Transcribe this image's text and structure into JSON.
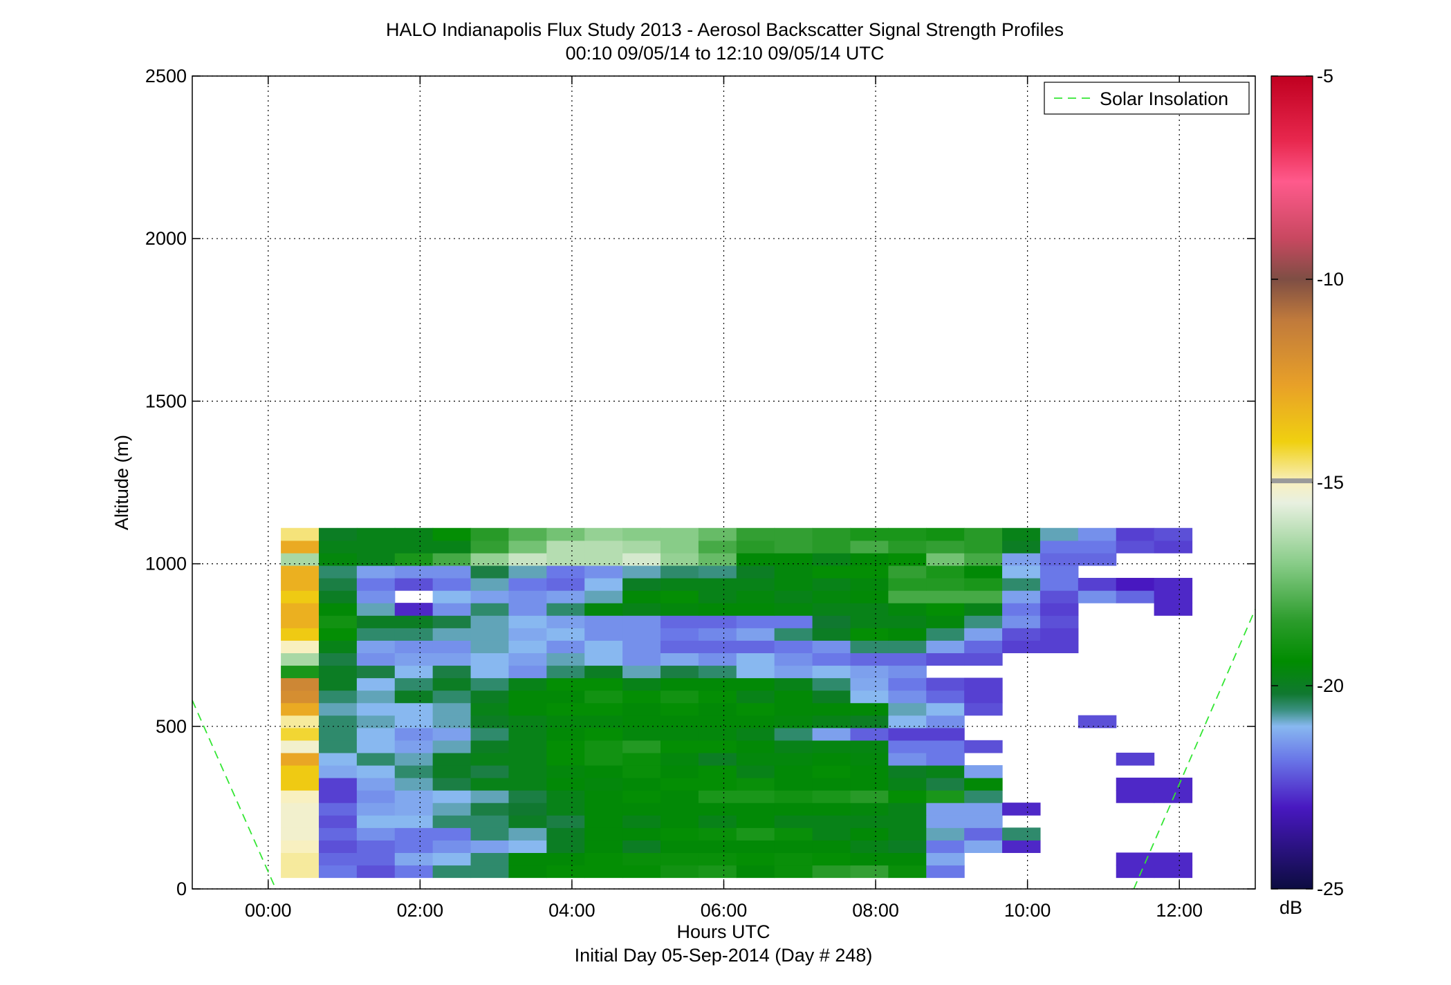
{
  "chart_data": {
    "type": "heatmap",
    "title": "HALO Indianapolis Flux Study 2013 - Aerosol Backscatter Signal Strength Profiles",
    "subtitle": "00:10 09/05/14 to 12:10 09/05/14  UTC",
    "xlabel": "Hours UTC",
    "xlabel2": "Initial Day 05-Sep-2014 (Day # 248)",
    "ylabel": "Altitude (m)",
    "xlim": [
      -1.0,
      13.0
    ],
    "ylim": [
      0,
      2500
    ],
    "x_ticks": [
      0,
      2,
      4,
      6,
      8,
      10,
      12
    ],
    "x_tick_labels": [
      "00:00",
      "02:00",
      "04:00",
      "06:00",
      "08:00",
      "10:00",
      "12:00"
    ],
    "y_ticks": [
      0,
      500,
      1000,
      1500,
      2000,
      2500
    ],
    "y_tick_labels": [
      "0",
      "500",
      "1000",
      "1500",
      "2000",
      "2500"
    ],
    "grid": true,
    "legend": {
      "placement": "top-right",
      "entries": [
        "Solar Insolation"
      ]
    },
    "colorbar": {
      "label": "dB",
      "range": [
        -25,
        -5
      ],
      "ticks": [
        -5,
        -10,
        -15,
        -20,
        -25
      ],
      "tick_labels": [
        "-5",
        "-10",
        "-15",
        "-20",
        "-25"
      ]
    },
    "cell": {
      "time_start": 0.1667,
      "time_step": 0.5,
      "alt_base": 35,
      "alt_step": 38.4
    },
    "profiles": [
      [
        -14.8,
        -21.8,
        -22.3,
        -21.8,
        -20.5,
        -20.5,
        -19.5,
        -19.3,
        -19.3,
        -19.3,
        -19.0,
        -18.8,
        -19.5,
        -19.2,
        -18.5,
        -18.3,
        -19.2,
        -21.8,
        null,
        null,
        null,
        null,
        -22.8,
        -22.8
      ],
      [
        -14.8,
        -22.0,
        -22.0,
        -21.2,
        -21.0,
        -20.5,
        -19.5,
        -19.5,
        -19.3,
        -19.2,
        -19.2,
        -19.2,
        -19.3,
        -19.2,
        -19.3,
        -19.5,
        -19.5,
        -21.2,
        null,
        null,
        null,
        null,
        -22.8,
        -22.8
      ],
      [
        -15.0,
        -22.3,
        -22.0,
        -21.8,
        -21.5,
        -21.3,
        -21.0,
        -20.0,
        -19.5,
        -20.0,
        -19.5,
        -19.5,
        -19.5,
        -19.5,
        -19.5,
        -19.8,
        -20.0,
        -21.8,
        -21.2,
        -22.8,
        null,
        null,
        null,
        null
      ],
      [
        -15.2,
        -22.0,
        -21.5,
        -21.8,
        -21.8,
        -20.5,
        -20.8,
        -20.0,
        -19.5,
        -19.5,
        -19.3,
        -19.2,
        -18.8,
        -19.2,
        -19.8,
        -19.5,
        -19.8,
        -20.8,
        -22.0,
        -20.5,
        null,
        null,
        null,
        null
      ],
      [
        -15.2,
        -22.3,
        -21.0,
        -21.0,
        -20.5,
        -20.5,
        -20.0,
        -20.3,
        -19.5,
        -19.8,
        -19.5,
        -19.8,
        -19.5,
        -19.8,
        -19.8,
        -19.8,
        -19.8,
        -21.3,
        -21.3,
        null,
        null,
        null,
        null,
        null
      ],
      [
        -15.2,
        -22.0,
        -21.3,
        -21.2,
        -20.8,
        -20.3,
        -20.2,
        -19.8,
        -19.5,
        -19.5,
        -19.5,
        -19.5,
        -19.5,
        -19.5,
        -19.5,
        -19.6,
        -19.8,
        -21.3,
        -21.3,
        -22.8,
        null,
        null,
        null,
        null
      ],
      [
        -15.0,
        -22.5,
        -21.5,
        -21.2,
        -21.0,
        -20.8,
        -20.3,
        -19.8,
        -19.5,
        -19.3,
        -19.5,
        -18.8,
        -18.8,
        -19.0,
        -18.8,
        -18.5,
        -19.3,
        -18.8,
        -20.5,
        null,
        null,
        null,
        -22.8,
        -22.8
      ],
      [
        -13.8,
        -22.5,
        -21.3,
        -20.8,
        -20.3,
        -19.8,
        -19.8,
        -19.5,
        -19.6,
        -19.5,
        -19.3,
        -19.3,
        -19.2,
        -19.5,
        -19.5,
        -19.5,
        -19.8,
        -20.3,
        -19.5,
        null,
        null,
        null,
        -22.8,
        -22.8
      ],
      [
        -13.8,
        -21.2,
        -21.0,
        -20.5,
        -20.0,
        -20.3,
        -19.8,
        -19.6,
        -19.5,
        -19.2,
        -19.5,
        -19.3,
        -19.8,
        -19.5,
        -19.3,
        -19.5,
        -20.0,
        -19.8,
        -21.3,
        null,
        null,
        null,
        null,
        null
      ],
      [
        -12.7,
        -21.0,
        -20.5,
        -20.8,
        -20.0,
        -19.8,
        -19.8,
        -19.3,
        -19.0,
        -19.2,
        -19.6,
        -20.0,
        -19.6,
        -19.6,
        -19.5,
        -19.6,
        -21.5,
        -21.8,
        null,
        null,
        null,
        null,
        -22.5,
        null
      ],
      [
        -15.2,
        -20.5,
        -21.0,
        -21.3,
        -20.8,
        -20.0,
        -19.8,
        -19.3,
        -19.0,
        -18.6,
        -19.3,
        -19.3,
        -19.5,
        -19.8,
        -19.7,
        -19.7,
        -21.8,
        -21.8,
        -22.3,
        null,
        null,
        null,
        null,
        null
      ],
      [
        -14.2,
        -20.5,
        -21.0,
        -21.5,
        -21.3,
        -20.5,
        -19.8,
        -19.5,
        -19.3,
        -19.6,
        -19.6,
        -19.6,
        -19.8,
        -20.5,
        -21.3,
        -22.1,
        -22.5,
        -22.5,
        null,
        null,
        null,
        null,
        null,
        null
      ],
      [
        -14.8,
        -20.5,
        -20.8,
        -21.0,
        -20.8,
        -20.0,
        -19.8,
        -19.6,
        -19.6,
        -19.5,
        -19.5,
        -19.5,
        -19.5,
        -19.6,
        -19.8,
        -20.0,
        -21.0,
        -21.5,
        null,
        null,
        null,
        -22.3,
        null,
        null
      ],
      [
        -12.8,
        -20.8,
        -21.0,
        -21.0,
        -20.8,
        -19.8,
        -19.5,
        -19.3,
        -19.3,
        -19.5,
        -19.3,
        -19.5,
        -19.3,
        -19.5,
        -19.5,
        -19.5,
        -20.8,
        -21.0,
        -22.3,
        null,
        null,
        null,
        null,
        null
      ],
      [
        -11.8,
        -20.5,
        -20.8,
        -20.0,
        -20.5,
        -20.0,
        -19.5,
        -19.5,
        -19.0,
        -19.3,
        -19.0,
        -19.3,
        -19.8,
        -19.5,
        -20.0,
        -21.0,
        -21.5,
        -22.0,
        -22.5,
        null,
        null,
        null,
        null,
        null
      ],
      [
        -11.5,
        -20.0,
        -21.0,
        -20.5,
        -20.0,
        -20.5,
        -19.8,
        -19.3,
        -19.3,
        -19.8,
        -19.5,
        -19.5,
        -19.5,
        -19.8,
        -20.5,
        -21.2,
        -21.8,
        -22.3,
        -22.5,
        null,
        null,
        null,
        null,
        null
      ],
      [
        -18.8,
        -20.0,
        -20.3,
        -21.0,
        -20.3,
        -21.0,
        -21.5,
        -20.5,
        -20.0,
        -20.8,
        -20.3,
        -20.5,
        -21.0,
        -21.3,
        -21.0,
        -21.3,
        -21.5,
        null,
        null,
        null,
        null,
        null,
        null,
        null
      ],
      [
        -16.5,
        -20.3,
        -21.5,
        -21.3,
        -21.3,
        -21.0,
        -21.3,
        -20.8,
        -21.0,
        -21.5,
        -21.2,
        -21.5,
        -21.0,
        -21.5,
        -21.8,
        -22.0,
        -22.0,
        -22.3,
        -22.3,
        null,
        null,
        null,
        null,
        null
      ],
      [
        -15.0,
        -19.8,
        -21.3,
        -21.5,
        -21.5,
        -20.8,
        -21.0,
        -21.5,
        -21.0,
        -21.5,
        -22.0,
        -22.0,
        -22.0,
        -21.8,
        -21.5,
        -20.5,
        -20.5,
        -21.3,
        -22.0,
        -22.5,
        -22.5,
        null,
        null,
        null
      ],
      [
        -13.8,
        -19.3,
        -20.5,
        -20.5,
        -20.8,
        -20.8,
        -21.2,
        -21.0,
        -21.5,
        -21.5,
        -21.8,
        -21.6,
        -21.3,
        -20.5,
        -20.0,
        -19.3,
        -19.5,
        -20.5,
        -21.3,
        -22.3,
        -22.5,
        null,
        null,
        null
      ],
      [
        -13.0,
        -19.0,
        -20.0,
        -20.0,
        -20.3,
        -20.8,
        -21.0,
        -21.3,
        -21.5,
        -21.5,
        -22.0,
        -22.0,
        -21.8,
        -21.8,
        -20.2,
        -19.8,
        -19.8,
        -19.6,
        -20.6,
        -21.5,
        -22.3,
        null,
        null,
        null
      ],
      [
        -13.0,
        -19.5,
        -20.8,
        -22.8,
        -21.5,
        -20.5,
        -21.5,
        -20.5,
        -19.6,
        -19.8,
        -19.6,
        -19.5,
        -19.5,
        -19.6,
        -19.8,
        -19.8,
        -19.6,
        -19.3,
        -19.8,
        -21.8,
        -22.5,
        null,
        null,
        -22.8
      ],
      [
        -13.8,
        -20.0,
        -21.5,
        null,
        -21.0,
        -21.3,
        -21.5,
        -21.3,
        -20.8,
        -19.5,
        -19.3,
        -19.8,
        -19.6,
        -19.8,
        -19.6,
        -19.5,
        -18.0,
        -18.0,
        -18.0,
        -21.3,
        -22.3,
        -21.5,
        -22.0,
        -22.8
      ],
      [
        -13.0,
        -20.3,
        -21.8,
        -22.3,
        -21.8,
        -20.8,
        -21.8,
        -22.0,
        -21.0,
        -20.0,
        -19.8,
        -19.8,
        -19.8,
        -19.6,
        -19.8,
        -19.6,
        -18.6,
        -18.6,
        -18.8,
        -20.5,
        -21.8,
        -22.5,
        -23.0,
        -22.8
      ],
      [
        -13.0,
        -20.5,
        -21.3,
        -21.5,
        -21.5,
        -20.3,
        -20.8,
        -21.8,
        -21.5,
        -20.8,
        -20.5,
        -20.6,
        -20.0,
        -19.6,
        -19.3,
        -19.3,
        -18.3,
        -18.8,
        -19.5,
        -21.0,
        -21.8,
        null,
        null,
        null
      ],
      [
        -16.5,
        -19.6,
        -19.8,
        -18.8,
        -18.0,
        -16.8,
        -16.0,
        -16.3,
        -16.3,
        -15.8,
        -16.8,
        -17.5,
        -19.5,
        -19.5,
        -19.8,
        -19.5,
        -19.3,
        -17.3,
        -18.0,
        -21.3,
        -22.0,
        -22.0,
        null,
        null
      ],
      [
        -12.8,
        -19.8,
        -19.8,
        -19.8,
        -19.8,
        -18.3,
        -17.3,
        -16.3,
        -16.3,
        -16.5,
        -17.0,
        -18.0,
        -18.5,
        -18.3,
        -18.5,
        -18.0,
        -18.5,
        -18.3,
        -18.5,
        -20.0,
        -21.8,
        -21.8,
        -22.3,
        -22.5
      ],
      [
        -14.6,
        -20.0,
        -19.8,
        -19.8,
        -19.3,
        -18.5,
        -17.8,
        -17.3,
        -16.8,
        -17.0,
        -17.0,
        -17.5,
        -18.3,
        -18.3,
        -18.5,
        -18.8,
        -18.8,
        -19.0,
        -18.5,
        -19.8,
        -20.8,
        -21.5,
        -22.5,
        -22.3
      ]
    ]
  }
}
